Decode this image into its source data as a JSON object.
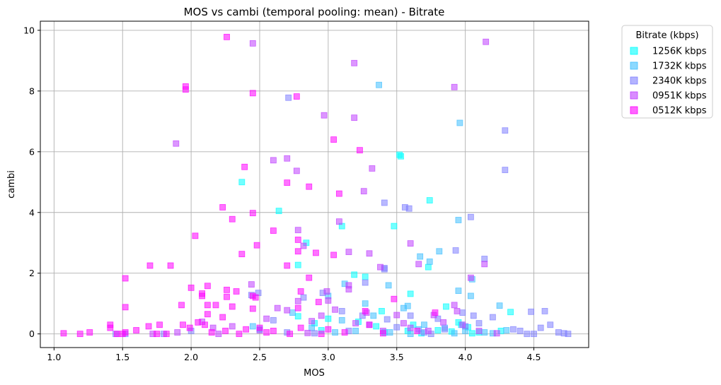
{
  "chart_data": {
    "type": "scatter",
    "title": "MOS vs cambi (temporal pooling: mean) - Bitrate",
    "xlabel": "MOS",
    "ylabel": "cambi",
    "xlim": [
      0.9,
      4.9
    ],
    "ylim": [
      -0.45,
      10.3
    ],
    "xticks": [
      "1.0",
      "1.5",
      "2.0",
      "2.5",
      "3.0",
      "3.5",
      "4.0",
      "4.5"
    ],
    "yticks": [
      "0",
      "2",
      "4",
      "6",
      "8",
      "10"
    ],
    "grid": true,
    "marker": "square",
    "legend": {
      "title": "Bitrate (kbps)",
      "placement": "outside-right-top"
    },
    "series": [
      {
        "name": "1256K kbps",
        "color": "#00ffff",
        "points": [
          [
            2.37,
            5.0
          ],
          [
            2.64,
            4.05
          ],
          [
            2.78,
            2.27
          ],
          [
            2.84,
            3.0
          ],
          [
            3.1,
            3.55
          ],
          [
            3.19,
            1.95
          ],
          [
            3.27,
            1.88
          ],
          [
            3.39,
            0.75
          ],
          [
            3.48,
            3.55
          ],
          [
            3.52,
            5.9
          ],
          [
            3.53,
            5.85
          ],
          [
            3.6,
            1.32
          ],
          [
            3.74,
            4.4
          ],
          [
            3.73,
            2.2
          ],
          [
            3.86,
            0.9
          ],
          [
            3.95,
            0.38
          ],
          [
            3.97,
            0.3
          ],
          [
            4.02,
            0.22
          ],
          [
            4.33,
            0.72
          ],
          [
            2.78,
            0.58
          ],
          [
            2.9,
            0.35
          ],
          [
            3.0,
            0.5
          ],
          [
            3.22,
            0.4
          ],
          [
            3.41,
            0.05
          ],
          [
            3.58,
            0.1
          ],
          [
            3.68,
            0.02
          ],
          [
            3.8,
            0.12
          ],
          [
            4.1,
            0.05
          ],
          [
            4.26,
            0.1
          ],
          [
            2.5,
            0.15
          ],
          [
            2.95,
            0.12
          ],
          [
            3.35,
            0.25
          ],
          [
            3.62,
            0.3
          ],
          [
            3.9,
            0.08
          ],
          [
            4.05,
            0.02
          ]
        ]
      },
      {
        "name": "1732K kbps",
        "color": "#40bfff",
        "points": [
          [
            3.37,
            8.2
          ],
          [
            3.96,
            6.95
          ],
          [
            3.95,
            3.75
          ],
          [
            3.81,
            2.72
          ],
          [
            3.67,
            2.55
          ],
          [
            3.74,
            2.38
          ],
          [
            3.58,
            0.92
          ],
          [
            3.44,
            1.6
          ],
          [
            3.12,
            1.65
          ],
          [
            3.0,
            1.25
          ],
          [
            4.05,
            1.8
          ],
          [
            4.25,
            0.93
          ],
          [
            4.04,
            1.25
          ],
          [
            3.95,
            1.42
          ],
          [
            2.74,
            0.7
          ],
          [
            3.27,
            1.0
          ],
          [
            3.55,
            0.85
          ],
          [
            3.7,
            0.3
          ],
          [
            3.85,
            0.2
          ],
          [
            4.0,
            0.1
          ],
          [
            4.14,
            0.05
          ],
          [
            4.3,
            0.12
          ],
          [
            3.2,
            0.1
          ],
          [
            3.45,
            0.05
          ],
          [
            2.88,
            0.2
          ],
          [
            3.1,
            0.45
          ],
          [
            3.33,
            0.6
          ],
          [
            3.66,
            0.15
          ],
          [
            3.92,
            0.02
          ],
          [
            4.2,
            0.02
          ],
          [
            2.45,
            0.25
          ],
          [
            3.05,
            0.05
          ],
          [
            3.6,
            0.0
          ]
        ]
      },
      {
        "name": "2340K kbps",
        "color": "#8080ff",
        "points": [
          [
            2.71,
            7.78
          ],
          [
            4.29,
            6.7
          ],
          [
            4.29,
            5.4
          ],
          [
            3.41,
            4.32
          ],
          [
            3.56,
            4.17
          ],
          [
            3.59,
            4.13
          ],
          [
            4.04,
            3.85
          ],
          [
            3.93,
            2.75
          ],
          [
            3.41,
            2.17
          ],
          [
            3.41,
            2.13
          ],
          [
            3.27,
            1.69
          ],
          [
            4.14,
            2.47
          ],
          [
            4.06,
            0.6
          ],
          [
            4.48,
            0.73
          ],
          [
            4.58,
            0.75
          ],
          [
            4.72,
            0.02
          ],
          [
            4.75,
            0.0
          ],
          [
            4.4,
            0.1
          ],
          [
            4.5,
            0.0
          ],
          [
            4.55,
            0.2
          ],
          [
            4.62,
            0.3
          ],
          [
            4.68,
            0.05
          ],
          [
            3.98,
            0.7
          ],
          [
            3.8,
            0.5
          ],
          [
            3.6,
            0.6
          ],
          [
            3.43,
            0.48
          ],
          [
            3.25,
            0.6
          ],
          [
            3.1,
            0.75
          ],
          [
            2.96,
            1.35
          ],
          [
            2.82,
            1.2
          ],
          [
            2.6,
            0.45
          ],
          [
            2.49,
            1.35
          ],
          [
            2.44,
            1.28
          ],
          [
            2.0,
            0.1
          ],
          [
            1.8,
            0.0
          ],
          [
            1.52,
            0.0
          ],
          [
            1.45,
            0.0
          ],
          [
            3.7,
            0.05
          ],
          [
            3.85,
            0.15
          ],
          [
            4.0,
            0.25
          ],
          [
            4.2,
            0.55
          ],
          [
            4.35,
            0.15
          ],
          [
            4.1,
            0.35
          ],
          [
            3.5,
            0.22
          ],
          [
            3.3,
            0.3
          ],
          [
            3.15,
            0.1
          ],
          [
            2.7,
            0.05
          ],
          [
            2.9,
            0.02
          ],
          [
            3.75,
            0.0
          ],
          [
            4.45,
            0.0
          ]
        ]
      },
      {
        "name": "0951K kbps",
        "color": "#bf40ff",
        "points": [
          [
            2.45,
            9.57
          ],
          [
            4.15,
            9.62
          ],
          [
            3.19,
            8.92
          ],
          [
            3.92,
            8.13
          ],
          [
            2.97,
            7.2
          ],
          [
            3.19,
            7.12
          ],
          [
            1.89,
            6.27
          ],
          [
            2.7,
            5.78
          ],
          [
            2.6,
            5.72
          ],
          [
            3.32,
            5.45
          ],
          [
            2.77,
            5.37
          ],
          [
            3.26,
            4.7
          ],
          [
            2.78,
            3.42
          ],
          [
            3.08,
            3.7
          ],
          [
            3.6,
            2.98
          ],
          [
            2.82,
            2.9
          ],
          [
            3.15,
            2.7
          ],
          [
            3.3,
            2.65
          ],
          [
            3.66,
            2.3
          ],
          [
            3.38,
            2.2
          ],
          [
            4.14,
            2.3
          ],
          [
            4.04,
            1.85
          ],
          [
            3.15,
            1.6
          ],
          [
            3.15,
            1.47
          ],
          [
            2.44,
            1.63
          ],
          [
            2.99,
            1.4
          ],
          [
            3.0,
            1.1
          ],
          [
            2.78,
            1.08
          ],
          [
            3.05,
            0.8
          ],
          [
            3.28,
            0.7
          ],
          [
            3.5,
            0.62
          ],
          [
            3.77,
            0.62
          ],
          [
            3.92,
            0.95
          ],
          [
            3.94,
            0.75
          ],
          [
            2.63,
            0.85
          ],
          [
            2.55,
            0.5
          ],
          [
            2.7,
            0.78
          ],
          [
            2.88,
            0.42
          ],
          [
            3.2,
            0.35
          ],
          [
            3.4,
            0.1
          ],
          [
            3.6,
            0.2
          ],
          [
            3.84,
            0.38
          ],
          [
            3.98,
            0.3
          ],
          [
            4.1,
            0.1
          ],
          [
            4.23,
            0.02
          ],
          [
            2.3,
            0.25
          ],
          [
            2.16,
            0.2
          ],
          [
            2.08,
            0.4
          ],
          [
            2.2,
            0.0
          ],
          [
            1.72,
            0.0
          ],
          [
            1.9,
            0.05
          ],
          [
            3.73,
            0.1
          ],
          [
            3.55,
            0.35
          ],
          [
            2.95,
            0.6
          ],
          [
            2.5,
            0.12
          ],
          [
            2.85,
            0.03
          ]
        ]
      },
      {
        "name": "0512K kbps",
        "color": "#ff00ff",
        "points": [
          [
            2.26,
            9.78
          ],
          [
            1.96,
            8.15
          ],
          [
            1.96,
            8.05
          ],
          [
            2.45,
            7.93
          ],
          [
            2.77,
            7.82
          ],
          [
            3.23,
            6.05
          ],
          [
            3.04,
            6.4
          ],
          [
            2.39,
            5.5
          ],
          [
            2.7,
            4.98
          ],
          [
            2.86,
            4.85
          ],
          [
            3.08,
            4.62
          ],
          [
            2.23,
            4.17
          ],
          [
            2.45,
            3.98
          ],
          [
            2.3,
            3.78
          ],
          [
            2.03,
            3.23
          ],
          [
            2.6,
            3.4
          ],
          [
            2.78,
            3.1
          ],
          [
            2.48,
            2.92
          ],
          [
            2.91,
            2.67
          ],
          [
            3.04,
            2.6
          ],
          [
            2.37,
            2.63
          ],
          [
            2.78,
            2.72
          ],
          [
            1.7,
            2.25
          ],
          [
            1.85,
            2.25
          ],
          [
            2.7,
            2.25
          ],
          [
            1.52,
            1.83
          ],
          [
            2.0,
            1.52
          ],
          [
            2.12,
            1.58
          ],
          [
            2.08,
            1.33
          ],
          [
            2.08,
            1.25
          ],
          [
            2.26,
            1.45
          ],
          [
            2.33,
            1.4
          ],
          [
            2.45,
            1.25
          ],
          [
            2.47,
            1.2
          ],
          [
            2.86,
            1.85
          ],
          [
            2.8,
            1.4
          ],
          [
            2.26,
            1.22
          ],
          [
            2.12,
            0.95
          ],
          [
            1.93,
            0.95
          ],
          [
            1.52,
            0.88
          ],
          [
            2.18,
            0.95
          ],
          [
            2.3,
            0.9
          ],
          [
            2.45,
            0.83
          ],
          [
            2.78,
            0.85
          ],
          [
            2.93,
            1.05
          ],
          [
            3.48,
            1.15
          ],
          [
            3.27,
            0.75
          ],
          [
            3.78,
            0.7
          ],
          [
            2.12,
            0.65
          ],
          [
            2.23,
            0.55
          ],
          [
            2.05,
            0.38
          ],
          [
            2.1,
            0.3
          ],
          [
            2.5,
            0.2
          ],
          [
            2.6,
            0.1
          ],
          [
            2.8,
            0.2
          ],
          [
            3.0,
            0.15
          ],
          [
            3.3,
            0.3
          ],
          [
            3.65,
            0.1
          ],
          [
            1.41,
            0.3
          ],
          [
            1.41,
            0.2
          ],
          [
            1.5,
            0.0
          ],
          [
            1.6,
            0.12
          ],
          [
            1.69,
            0.25
          ],
          [
            1.77,
            0.3
          ],
          [
            1.82,
            0.0
          ],
          [
            1.94,
            0.3
          ],
          [
            1.07,
            0.02
          ],
          [
            1.19,
            0.0
          ],
          [
            1.26,
            0.05
          ],
          [
            1.52,
            0.05
          ],
          [
            1.75,
            0.0
          ],
          [
            1.99,
            0.2
          ],
          [
            2.15,
            0.05
          ],
          [
            2.35,
            0.0
          ],
          [
            2.55,
            0.05
          ],
          [
            2.72,
            0.0
          ],
          [
            2.95,
            0.0
          ],
          [
            3.12,
            0.05
          ],
          [
            3.4,
            0.02
          ],
          [
            1.46,
            0.0
          ],
          [
            2.25,
            0.1
          ],
          [
            2.4,
            0.15
          ]
        ]
      }
    ]
  }
}
